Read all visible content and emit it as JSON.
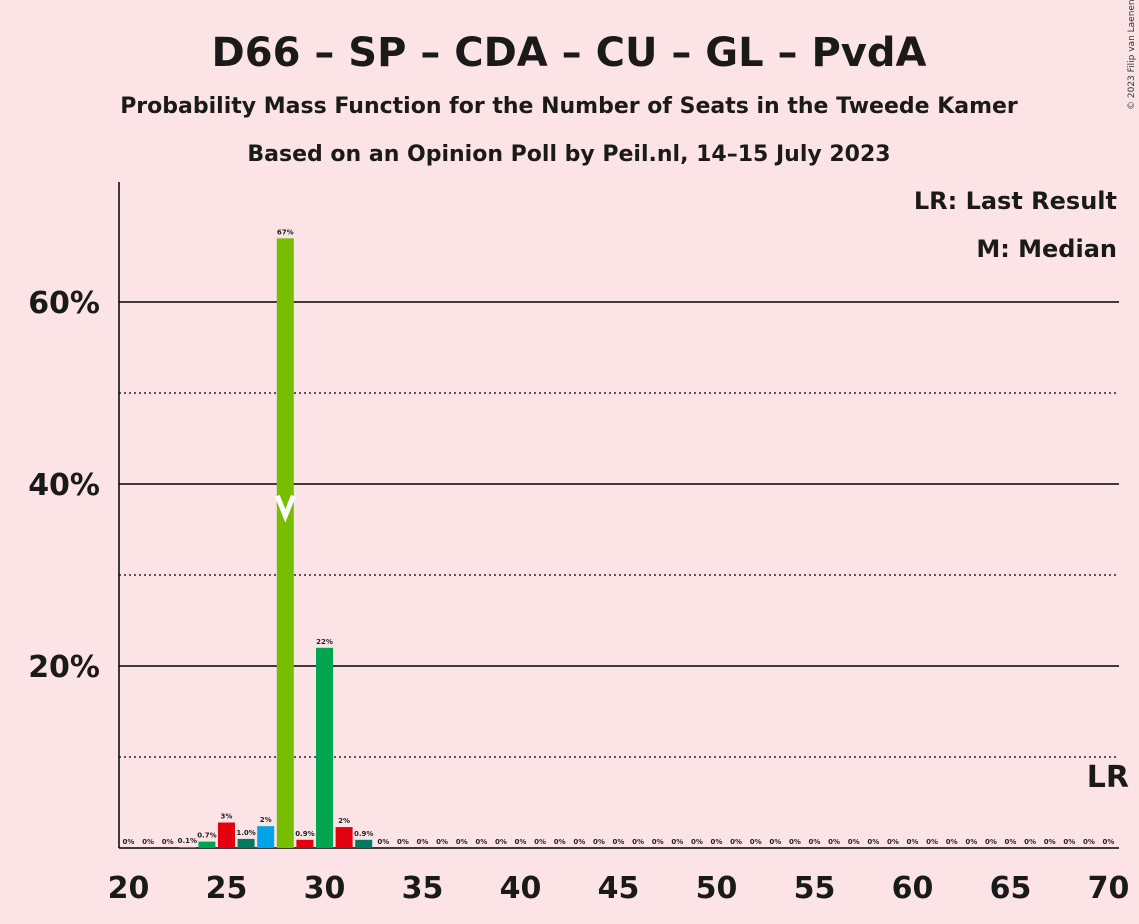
{
  "header": {
    "title": "D66 – SP – CDA – CU – GL – PvdA",
    "subtitle1": "Probability Mass Function for the Number of Seats in the Tweede Kamer",
    "subtitle2": "Based on an Opinion Poll by Peil.nl, 14–15 July 2023",
    "copyright": "© 2023 Filip van Laenen"
  },
  "legend": {
    "lr": "LR: Last Result",
    "median": "M: Median"
  },
  "markers": {
    "last_result_label": "LR",
    "last_result_seats": 70,
    "median_seats": 28
  },
  "colors": {
    "background": "#fce4e6",
    "d66_green": "#00a550",
    "sp_red": "#e3000f",
    "cda_teal": "#007b5f",
    "cu_blue": "#00a5e8",
    "gl_green": "#78be00",
    "axis": "#000000"
  },
  "chart_data": {
    "type": "bar",
    "x": [
      20,
      21,
      22,
      23,
      24,
      25,
      26,
      27,
      28,
      29,
      30,
      31,
      32,
      33,
      34,
      35,
      36,
      37,
      38,
      39,
      40,
      41,
      42,
      43,
      44,
      45,
      46,
      47,
      48,
      49,
      50,
      51,
      52,
      53,
      54,
      55,
      56,
      57,
      58,
      59,
      60,
      61,
      62,
      63,
      64,
      65,
      66,
      67,
      68,
      69,
      70
    ],
    "values": [
      0,
      0,
      0,
      0.1,
      0.7,
      2.8,
      1.0,
      2.4,
      67,
      0.9,
      22,
      2.3,
      0.9,
      0,
      0,
      0,
      0,
      0,
      0,
      0,
      0,
      0,
      0,
      0,
      0,
      0,
      0,
      0,
      0,
      0,
      0,
      0,
      0,
      0,
      0,
      0,
      0,
      0,
      0,
      0,
      0,
      0,
      0,
      0,
      0,
      0,
      0,
      0,
      0,
      0,
      0
    ],
    "labels": [
      "0%",
      "0%",
      "0%",
      "0.1%",
      "0.7%",
      "3%",
      "1.0%",
      "2%",
      "67%",
      "0.9%",
      "22%",
      "2%",
      "0.9%",
      "0%",
      "0%",
      "0%",
      "0%",
      "0%",
      "0%",
      "0%",
      "0%",
      "0%",
      "0%",
      "0%",
      "0%",
      "0%",
      "0%",
      "0%",
      "0%",
      "0%",
      "0%",
      "0%",
      "0%",
      "0%",
      "0%",
      "0%",
      "0%",
      "0%",
      "0%",
      "0%",
      "0%",
      "0%",
      "0%",
      "0%",
      "0%",
      "0%",
      "0%",
      "0%",
      "0%",
      "0%",
      "0%"
    ],
    "bar_colors": {
      "23": "#00a550",
      "24": "#00a550",
      "25": "#e3000f",
      "26": "#007b5f",
      "27": "#00a5e8",
      "28": "#78be00",
      "29": "#e3000f",
      "30": "#00a550",
      "31": "#e3000f",
      "32": "#007b5f"
    },
    "xticks": [
      "20",
      "25",
      "30",
      "35",
      "40",
      "45",
      "50",
      "55",
      "60",
      "65",
      "70"
    ],
    "xtick_values": [
      20,
      25,
      30,
      35,
      40,
      45,
      50,
      55,
      60,
      65,
      70
    ],
    "yticks": [
      "20%",
      "40%",
      "60%"
    ],
    "ytick_values": [
      20,
      40,
      60
    ],
    "ygrid_dotted": [
      10,
      30,
      50
    ],
    "ylim": [
      0,
      73
    ],
    "xlim": [
      20,
      70
    ],
    "xlabel": "",
    "ylabel": ""
  }
}
